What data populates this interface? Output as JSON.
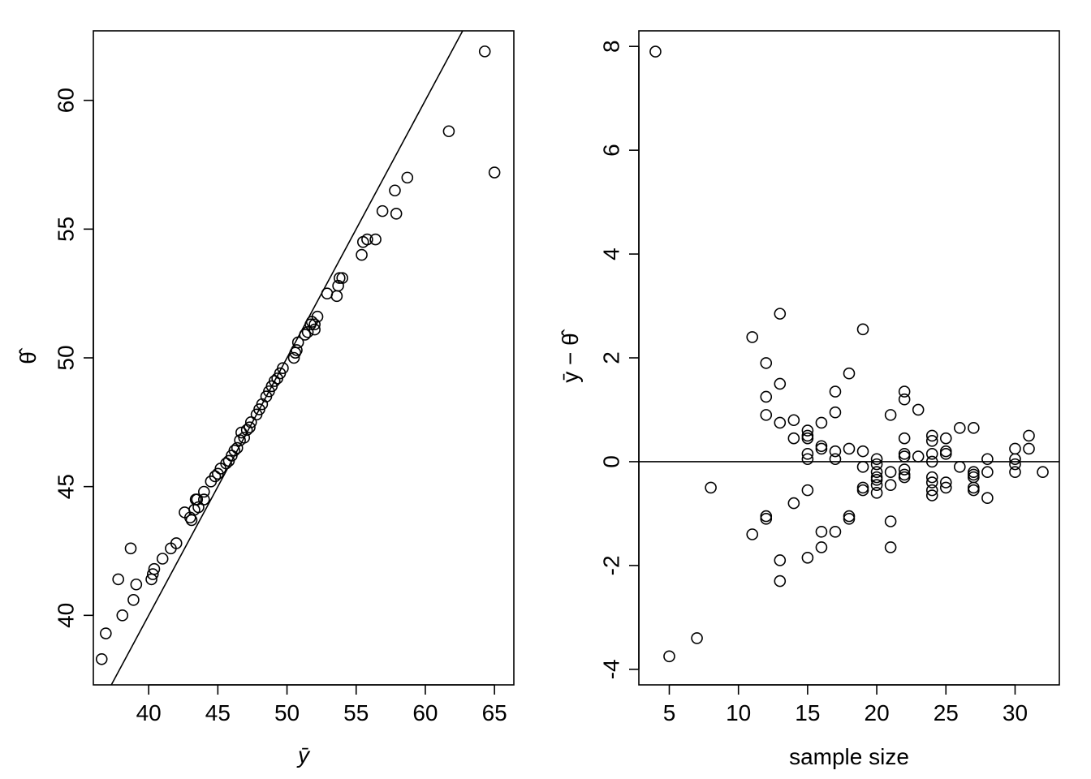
{
  "chart_data": [
    {
      "type": "scatter",
      "title": "",
      "xlabel": "ȳ",
      "ylabel": "θ̂",
      "xlim": [
        36,
        66.4
      ],
      "ylim": [
        37.3,
        62.7
      ],
      "xticks": [
        40,
        45,
        50,
        55,
        60,
        65
      ],
      "yticks": [
        40,
        45,
        50,
        55,
        60
      ],
      "grid": false,
      "reference_line": {
        "type": "identity",
        "slope": 1,
        "intercept": 0
      },
      "points": {
        "x": [
          36.6,
          36.9,
          37.8,
          38.1,
          38.7,
          38.9,
          39.1,
          40.2,
          40.3,
          40.4,
          41.0,
          41.6,
          42.0,
          42.6,
          43.0,
          43.1,
          43.3,
          43.4,
          43.5,
          43.6,
          44.0,
          44.0,
          44.5,
          44.8,
          45.0,
          45.2,
          45.6,
          45.8,
          46.0,
          46.2,
          46.4,
          46.6,
          46.7,
          46.9,
          47.1,
          47.3,
          47.4,
          47.8,
          48.0,
          48.2,
          48.5,
          48.7,
          48.9,
          49.1,
          49.3,
          49.5,
          49.7,
          50.5,
          50.6,
          50.7,
          50.8,
          51.3,
          51.5,
          51.7,
          51.8,
          52.0,
          52.0,
          52.2,
          52.9,
          53.6,
          53.7,
          53.8,
          54.0,
          55.4,
          55.5,
          55.8,
          56.4,
          56.9,
          57.8,
          57.9,
          58.7,
          61.7,
          64.3,
          65.0
        ],
        "y": [
          38.3,
          39.3,
          41.4,
          40.0,
          42.6,
          40.6,
          41.2,
          41.4,
          41.6,
          41.8,
          42.2,
          42.6,
          42.8,
          44.0,
          43.8,
          43.7,
          44.1,
          44.5,
          44.5,
          44.2,
          44.5,
          44.8,
          45.2,
          45.4,
          45.5,
          45.7,
          45.9,
          46.0,
          46.2,
          46.4,
          46.5,
          46.8,
          47.1,
          46.9,
          47.2,
          47.3,
          47.5,
          47.8,
          48.0,
          48.2,
          48.5,
          48.7,
          48.9,
          49.1,
          49.2,
          49.4,
          49.6,
          50.0,
          50.2,
          50.3,
          50.6,
          50.9,
          51.0,
          51.3,
          51.4,
          51.1,
          51.3,
          51.6,
          52.5,
          52.4,
          52.8,
          53.1,
          53.1,
          54.0,
          54.5,
          54.6,
          54.6,
          55.7,
          56.5,
          55.6,
          57.0,
          58.8,
          61.9,
          57.2
        ]
      }
    },
    {
      "type": "scatter",
      "title": "",
      "xlabel": "sample size",
      "ylabel": "ȳ − θ̂",
      "xlim": [
        2.8,
        33.2
      ],
      "ylim": [
        -4.3,
        8.3
      ],
      "xticks": [
        5,
        10,
        15,
        20,
        25,
        30
      ],
      "yticks": [
        -4,
        -2,
        0,
        2,
        4,
        6,
        8
      ],
      "grid": false,
      "reference_line": {
        "type": "horizontal",
        "y": 0
      },
      "points": {
        "x": [
          4,
          5,
          7,
          8,
          11,
          11,
          12,
          12,
          12,
          12,
          12,
          13,
          13,
          13,
          13,
          13,
          14,
          14,
          14,
          15,
          15,
          15,
          15,
          15,
          15,
          15,
          16,
          16,
          16,
          16,
          16,
          17,
          17,
          17,
          17,
          17,
          18,
          18,
          18,
          18,
          19,
          19,
          19,
          19,
          19,
          20,
          20,
          20,
          20,
          20,
          20,
          20,
          21,
          21,
          21,
          21,
          21,
          22,
          22,
          22,
          22,
          22,
          22,
          22,
          22,
          23,
          23,
          24,
          24,
          24,
          24,
          24,
          24,
          24,
          24,
          25,
          25,
          25,
          25,
          25,
          26,
          26,
          27,
          27,
          27,
          27,
          27,
          27,
          28,
          28,
          28,
          30,
          30,
          30,
          30,
          31,
          31,
          32
        ],
        "y": [
          7.9,
          -3.75,
          -3.4,
          -0.5,
          2.4,
          -1.4,
          1.9,
          1.25,
          0.9,
          -1.05,
          -1.1,
          2.85,
          1.5,
          0.75,
          -1.9,
          -2.3,
          0.8,
          0.45,
          -0.8,
          0.6,
          0.5,
          0.15,
          0.05,
          -0.55,
          -1.85,
          0.45,
          0.75,
          0.3,
          0.25,
          -1.35,
          -1.65,
          1.35,
          0.95,
          0.2,
          0.05,
          -1.35,
          1.7,
          0.25,
          -1.05,
          -1.1,
          2.55,
          0.2,
          -0.1,
          -0.5,
          -0.55,
          0.05,
          -0.05,
          -0.2,
          -0.35,
          -0.45,
          -0.6,
          -0.3,
          0.9,
          -0.2,
          -0.45,
          -1.15,
          -1.65,
          1.35,
          1.2,
          0.45,
          0.15,
          0.1,
          -0.15,
          -0.25,
          -0.3,
          1.0,
          0.1,
          0.5,
          0.4,
          0.15,
          0.0,
          -0.3,
          -0.4,
          -0.55,
          -0.65,
          0.45,
          0.15,
          -0.4,
          -0.5,
          0.2,
          0.65,
          -0.1,
          0.65,
          -0.2,
          -0.3,
          -0.5,
          -0.55,
          -0.25,
          0.05,
          -0.2,
          -0.7,
          0.25,
          0.05,
          -0.05,
          -0.2,
          0.5,
          0.25,
          -0.2
        ]
      }
    }
  ]
}
